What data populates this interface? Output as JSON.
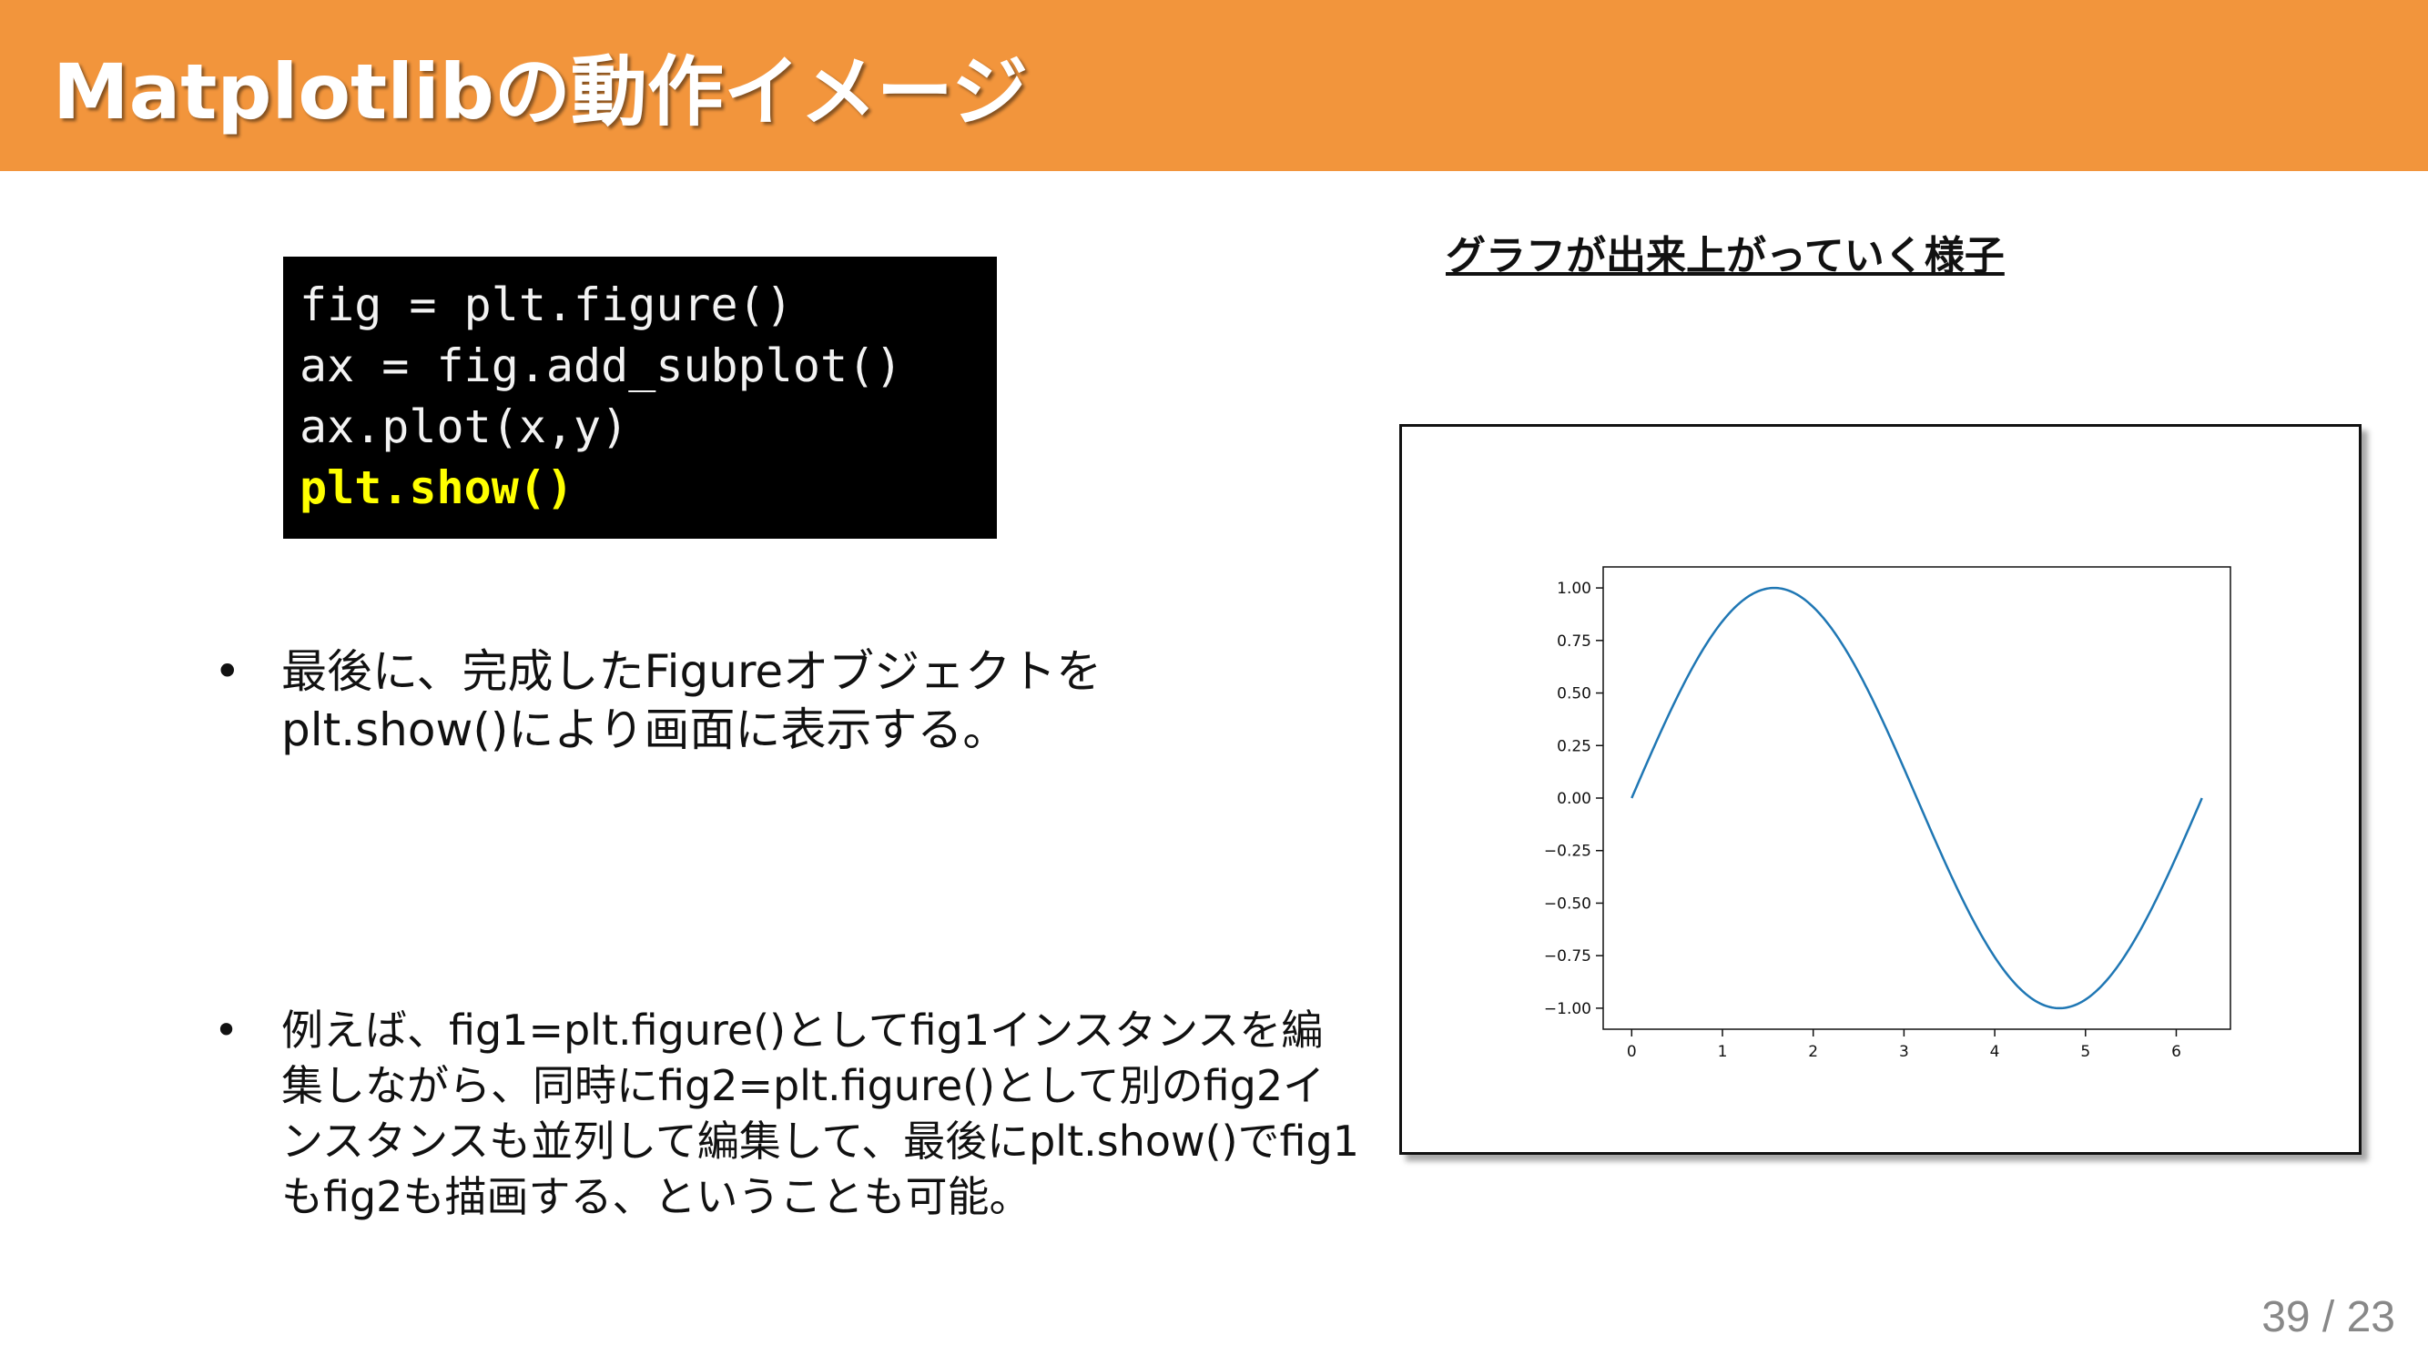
{
  "header": {
    "title": "Matplotlibの動作イメージ",
    "bg_color": "#F2953C"
  },
  "code": {
    "lines": [
      "fig = plt.figure()",
      "ax = fig.add_subplot()",
      "ax.plot(x,y)"
    ],
    "highlight_line": "plt.show()",
    "highlight_color": "#FFFF00"
  },
  "bullets": [
    {
      "marker": "•",
      "text": "最後に、完成したFigureオブジェクトをplt.show()により画面に表示する。"
    },
    {
      "marker": "•",
      "text": "例えば、fig1=plt.figure()としてfig1インスタンスを編集しながら、同時にfig2=plt.figure()として別のfig2インスタンスも並列して編集して、最後にplt.show()でfig1もfig2も描画する、ということも可能。"
    }
  ],
  "figure": {
    "caption": "グラフが出来上がっていく様子"
  },
  "chart_data": {
    "type": "line",
    "series": [
      {
        "function": "sin(x)",
        "x_range": [
          0,
          6.283
        ],
        "color": "#1f77b4"
      }
    ],
    "xlim": [
      -0.314,
      6.597
    ],
    "ylim": [
      -1.1,
      1.1
    ],
    "xticks": [
      0,
      1,
      2,
      3,
      4,
      5,
      6
    ],
    "yticks": [
      1.0,
      0.75,
      0.5,
      0.25,
      0.0,
      -0.25,
      -0.5,
      -0.75,
      -1.0
    ],
    "xtick_labels": [
      "0",
      "1",
      "2",
      "3",
      "4",
      "5",
      "6"
    ],
    "ytick_labels": [
      "1.00",
      "0.75",
      "0.50",
      "0.25",
      "0.00",
      "−0.25",
      "−0.50",
      "−0.75",
      "−1.00"
    ],
    "grid": false,
    "title": "",
    "xlabel": "",
    "ylabel": ""
  },
  "page": {
    "number": "39 / 23"
  }
}
